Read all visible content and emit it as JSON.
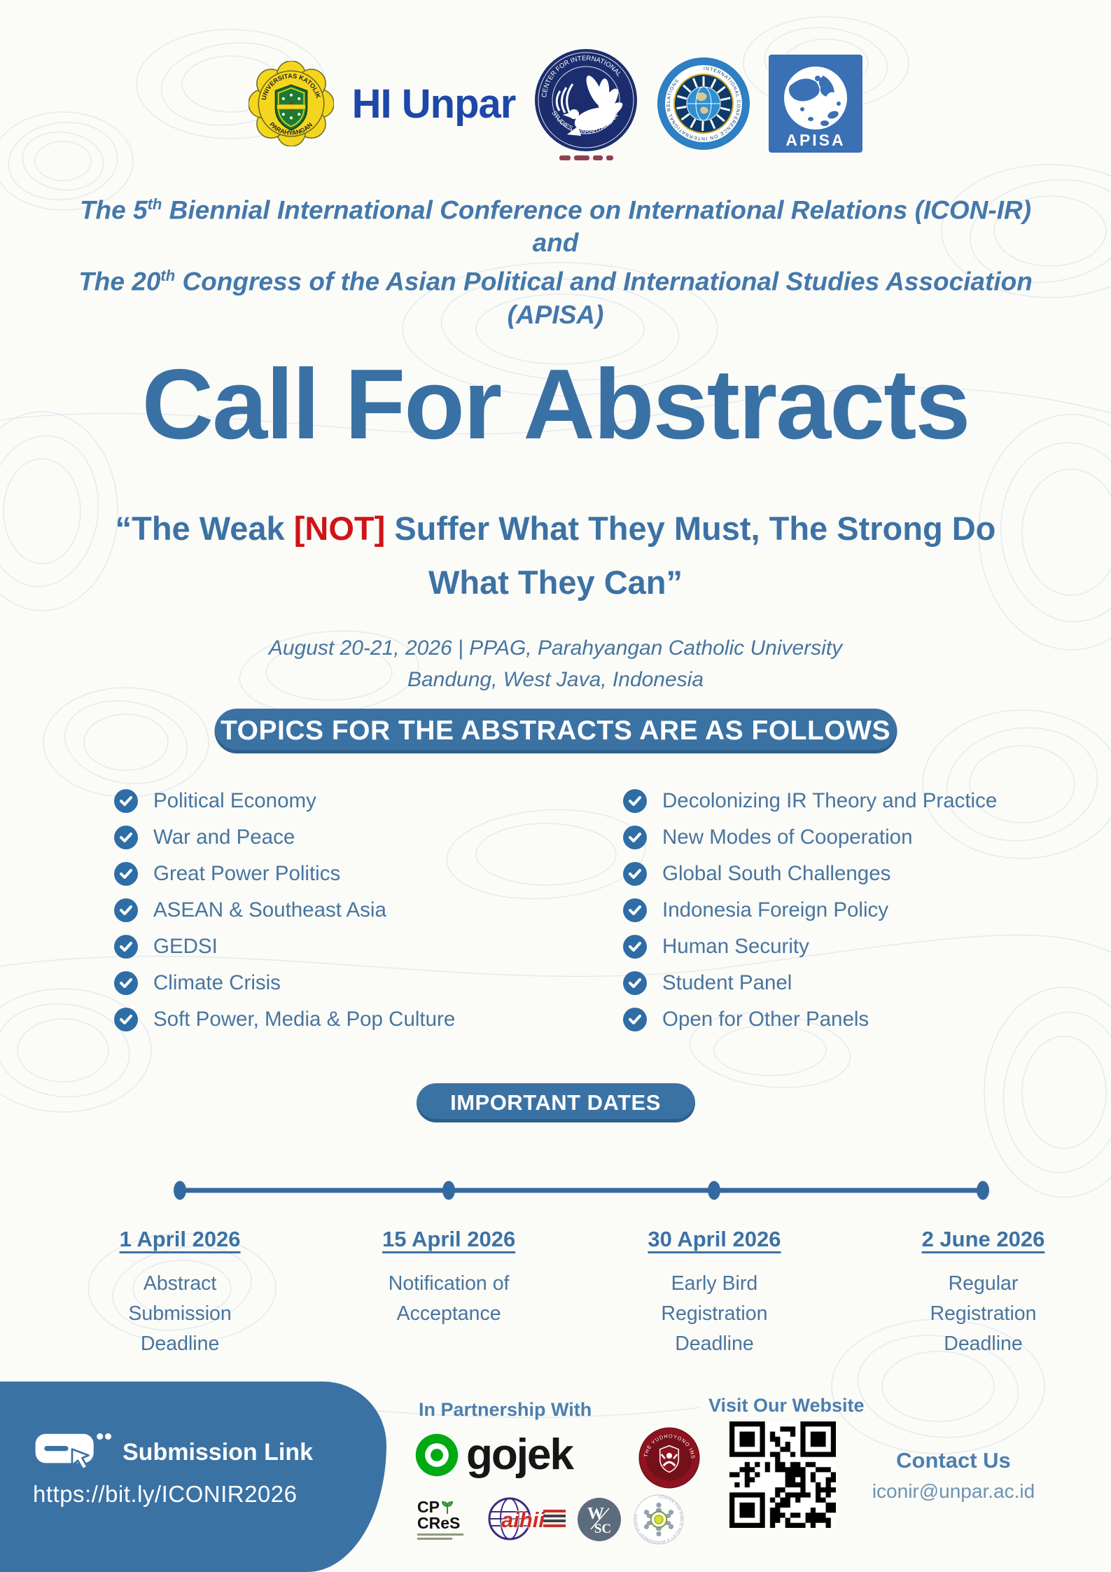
{
  "logos": {
    "unpar_ring_top": "UNIVERSITAS KATOLIK",
    "unpar_ring_bottom": "PARAHYANGAN",
    "hi_unpar": "HI Unpar",
    "cis_ring_top": "CENTER FOR INTERNATIONAL",
    "cis_ring_bottom": "STUDIES · PARAHYANGAN",
    "iconir_ring": "INTERNATIONAL CONFERENCE ON INTERNATIONAL RELATIONS",
    "apisa": "APISA"
  },
  "header": {
    "l1a": "The 5",
    "l1sup": "th",
    "l1b": " Biennial International Conference on International Relations (ICON-IR)",
    "l2": "and",
    "l3a": "The 20",
    "l3sup": "th",
    "l3b": " Congress of the Asian Political and International Studies Association",
    "l4": "(APISA)"
  },
  "title": "Call For Abstracts",
  "quote": {
    "open": "“The Weak ",
    "not": "[NOT]",
    "rest": " Suffer What They Must, The Strong Do What They Can”"
  },
  "venue": {
    "line1": "August 20-21, 2026 | PPAG, Parahyangan Catholic University",
    "line2": "Bandung, West Java, Indonesia"
  },
  "topics": {
    "banner": "TOPICS FOR THE ABSTRACTS ARE AS FOLLOWS",
    "left": [
      "Political Economy",
      "War and Peace",
      "Great Power Politics",
      "ASEAN & Southeast Asia",
      "GEDSI",
      "Climate Crisis",
      "Soft Power, Media & Pop Culture"
    ],
    "right": [
      "Decolonizing IR Theory and Practice",
      "New Modes of Cooperation",
      "Global South Challenges",
      "Indonesia Foreign Policy",
      "Human Security",
      "Student Panel",
      "Open for Other Panels"
    ]
  },
  "dates": {
    "banner": "IMPORTANT DATES",
    "items": [
      {
        "date": "1 April 2026",
        "label": "Abstract Submission Deadline"
      },
      {
        "date": "15 April 2026",
        "label": "Notification of Acceptance"
      },
      {
        "date": "30 April 2026",
        "label": "Early Bird Registration Deadline"
      },
      {
        "date": "2 June 2026",
        "label": "Regular Registration Deadline"
      }
    ]
  },
  "footer": {
    "submission_label": "Submission Link",
    "submission_url": "https://bit.ly/ICONIR2026",
    "partnership_heading": "In Partnership With",
    "website_heading": "Visit Our Website",
    "contact_heading": "Contact Us",
    "contact_email": "iconir@unpar.ac.id",
    "partners": {
      "gojek": "gojek",
      "yudhoyono_ring": "THE YUDHOYONO INSTITUTE",
      "cp_line1": "CP",
      "cp_line2": "CReS",
      "aihii": "aihii",
      "wsc_top": "W",
      "wsc_bottom": "SC",
      "cppms_ring": "CENTER FOR PUBLIC POLICY & MANAGEMENT STUDIES"
    }
  },
  "colors": {
    "accent_blue": "#3a71a4",
    "alert_red": "#d01317",
    "navy": "#1d47a8",
    "gojek_green": "#00aa13"
  }
}
